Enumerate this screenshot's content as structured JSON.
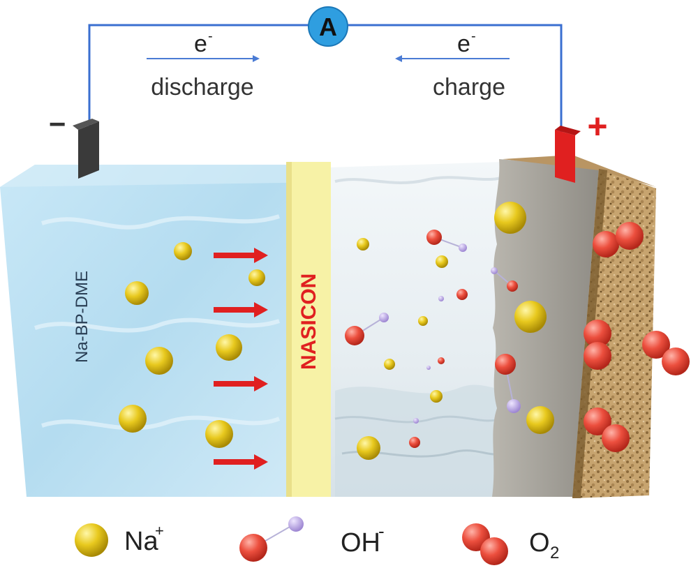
{
  "ammeter": {
    "label": "A"
  },
  "electron_flow": {
    "discharge": {
      "symbol": "e",
      "superscript": "-",
      "label": "discharge"
    },
    "charge": {
      "symbol": "e",
      "superscript": "-",
      "label": "charge"
    }
  },
  "terminals": {
    "negative": "−",
    "positive": "+"
  },
  "anolyte": {
    "label": "Na-BP-DME"
  },
  "membrane": {
    "label": "NASICON"
  },
  "legend": {
    "na": {
      "text": "Na",
      "sup": "+"
    },
    "oh": {
      "text": "OH",
      "sup": "-"
    },
    "o2": {
      "text": "O",
      "sub": "2"
    }
  },
  "colors": {
    "wire": "#3a6fd0",
    "ammeter": "#2f9ee0",
    "anolyte": "#bfe1f3",
    "membrane": "#f7f2a6",
    "membrane_text": "#e02020",
    "arrow": "#e02020",
    "na_ion": "#e3c21a",
    "o2": "#e94a3a",
    "oh_small": "#b9a4e0",
    "cathode": "#c9a878",
    "positive": "#e02020",
    "negative": "#333333"
  }
}
